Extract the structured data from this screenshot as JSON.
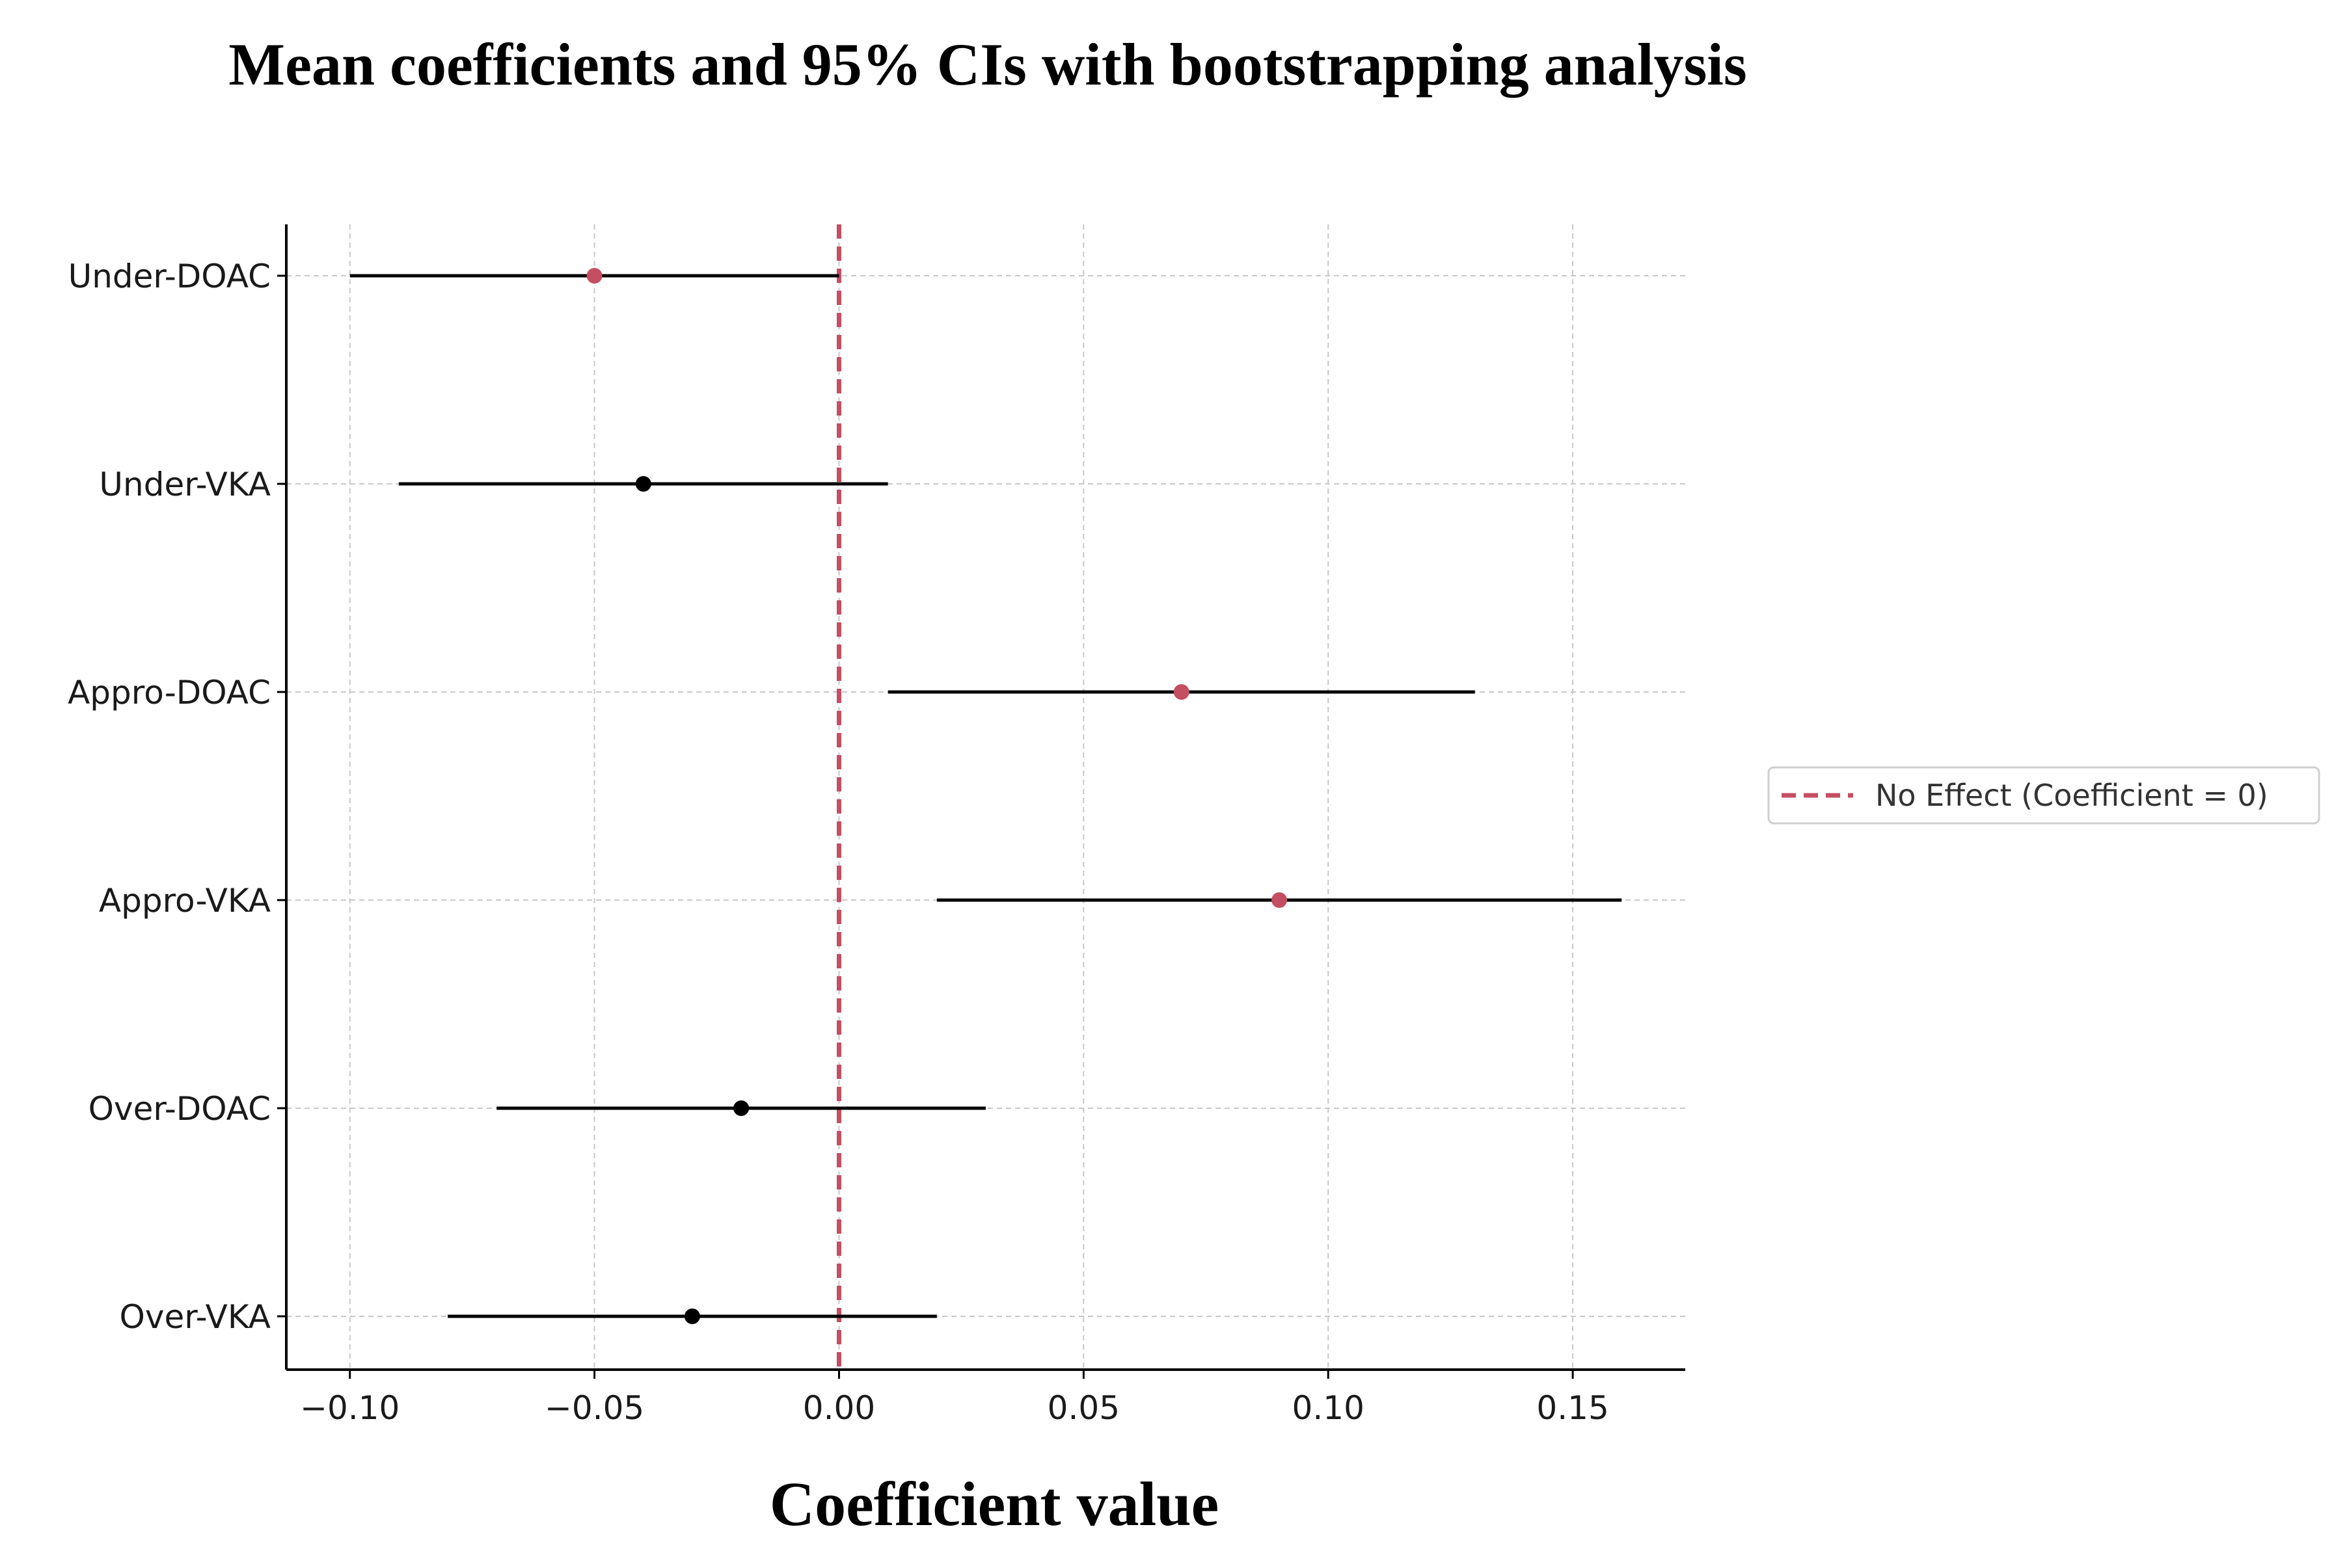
{
  "chart_data": {
    "type": "forest",
    "title": "Mean coefficients and 95% CIs with bootstrapping analysis",
    "xlabel": "Coefficient value",
    "ylabel": "",
    "xlim": [
      -0.113,
      0.173
    ],
    "xticks": [
      -0.1,
      -0.05,
      0.0,
      0.05,
      0.1,
      0.15
    ],
    "xtick_labels": [
      "−0.10",
      "−0.05",
      "0.00",
      "0.05",
      "0.10",
      "0.15"
    ],
    "grid": true,
    "reference_line": {
      "x": 0,
      "style": "dashed",
      "color": "#c44e62",
      "label": "No Effect (Coefficient = 0)"
    },
    "legend": {
      "placement": "right",
      "entries": [
        "No Effect (Coefficient = 0)"
      ]
    },
    "colors": {
      "significant": "#c44e62",
      "nonsignificant": "#000000",
      "ci_line": "#000000",
      "grid": "#c8c8c8",
      "axis": "#000000"
    },
    "rows": [
      {
        "label": "Under-DOAC",
        "mean": -0.05,
        "ci_low": -0.1,
        "ci_high": 0.0,
        "significant": true
      },
      {
        "label": "Under-VKA",
        "mean": -0.04,
        "ci_low": -0.09,
        "ci_high": 0.01,
        "significant": false
      },
      {
        "label": "Appro-DOAC",
        "mean": 0.07,
        "ci_low": 0.01,
        "ci_high": 0.13,
        "significant": true
      },
      {
        "label": "Appro-VKA",
        "mean": 0.09,
        "ci_low": 0.02,
        "ci_high": 0.16,
        "significant": true
      },
      {
        "label": "Over-DOAC",
        "mean": -0.02,
        "ci_low": -0.07,
        "ci_high": 0.03,
        "significant": false
      },
      {
        "label": "Over-VKA",
        "mean": -0.03,
        "ci_low": -0.08,
        "ci_high": 0.02,
        "significant": false
      }
    ]
  }
}
